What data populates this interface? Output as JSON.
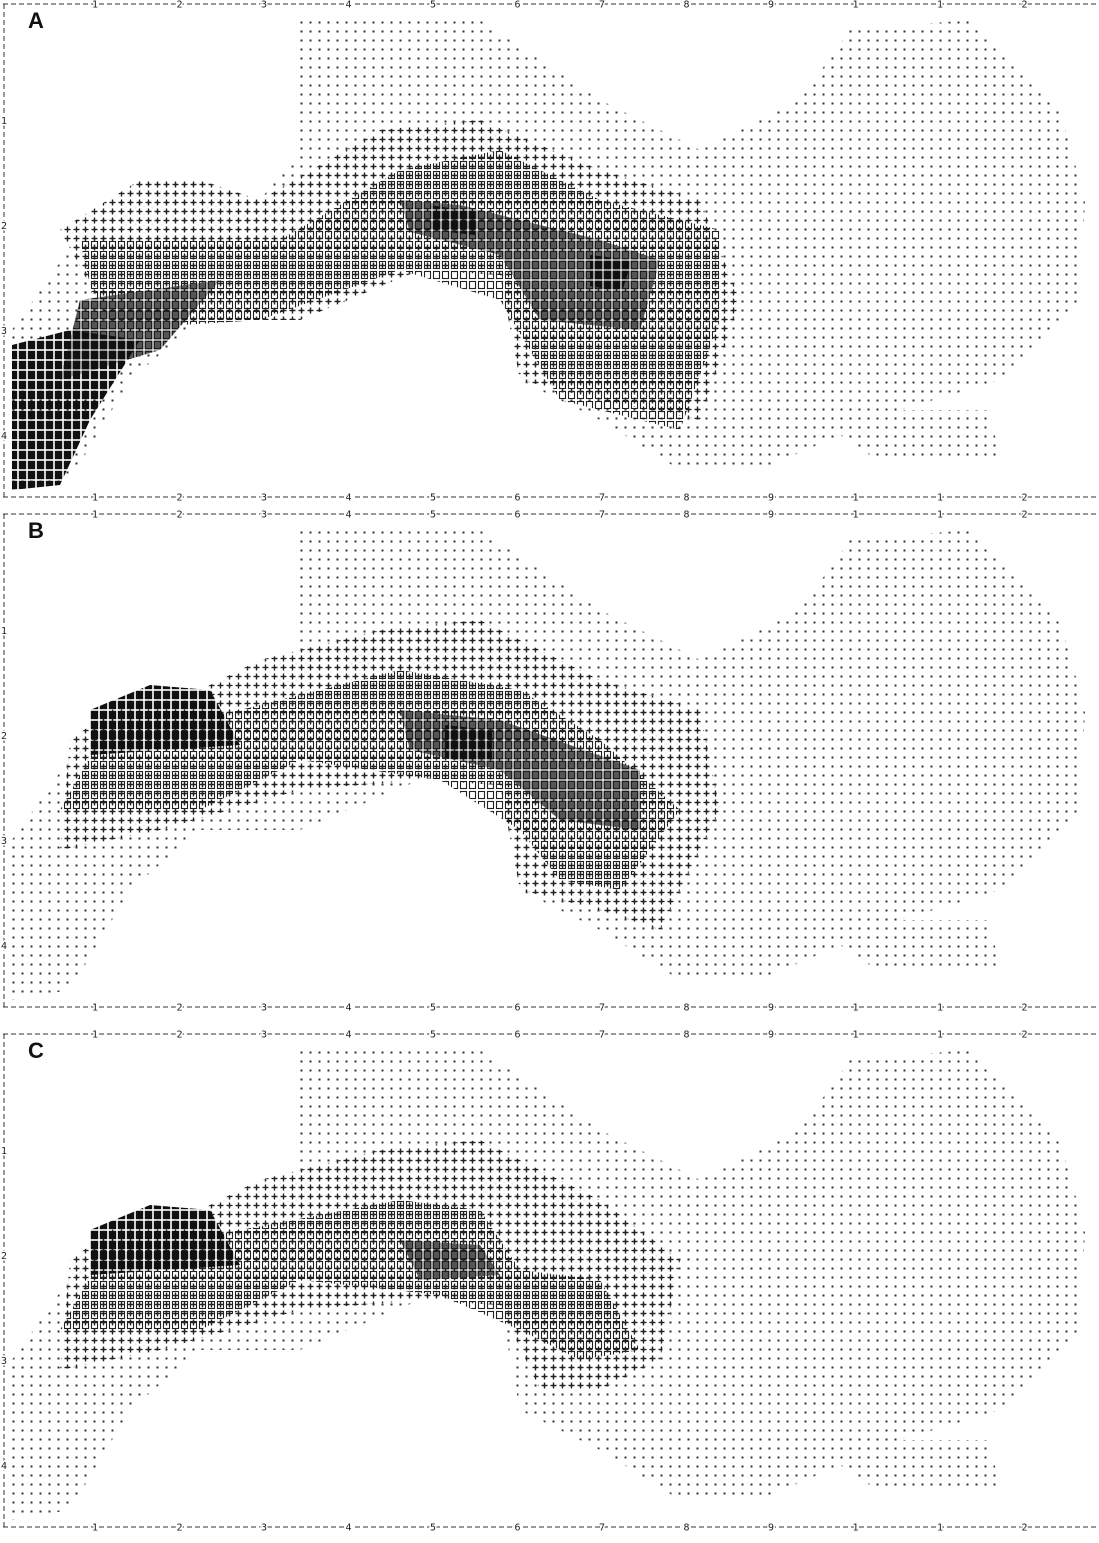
{
  "panels": [
    {
      "label": "A"
    },
    {
      "label": "B"
    },
    {
      "label": "C"
    }
  ],
  "ruler": {
    "top": [
      "1",
      "2",
      "3",
      "4",
      "5",
      "6",
      "7",
      "8",
      "9",
      "1",
      "1",
      "2"
    ],
    "left": [
      "1",
      "2",
      "3",
      "4"
    ]
  }
}
